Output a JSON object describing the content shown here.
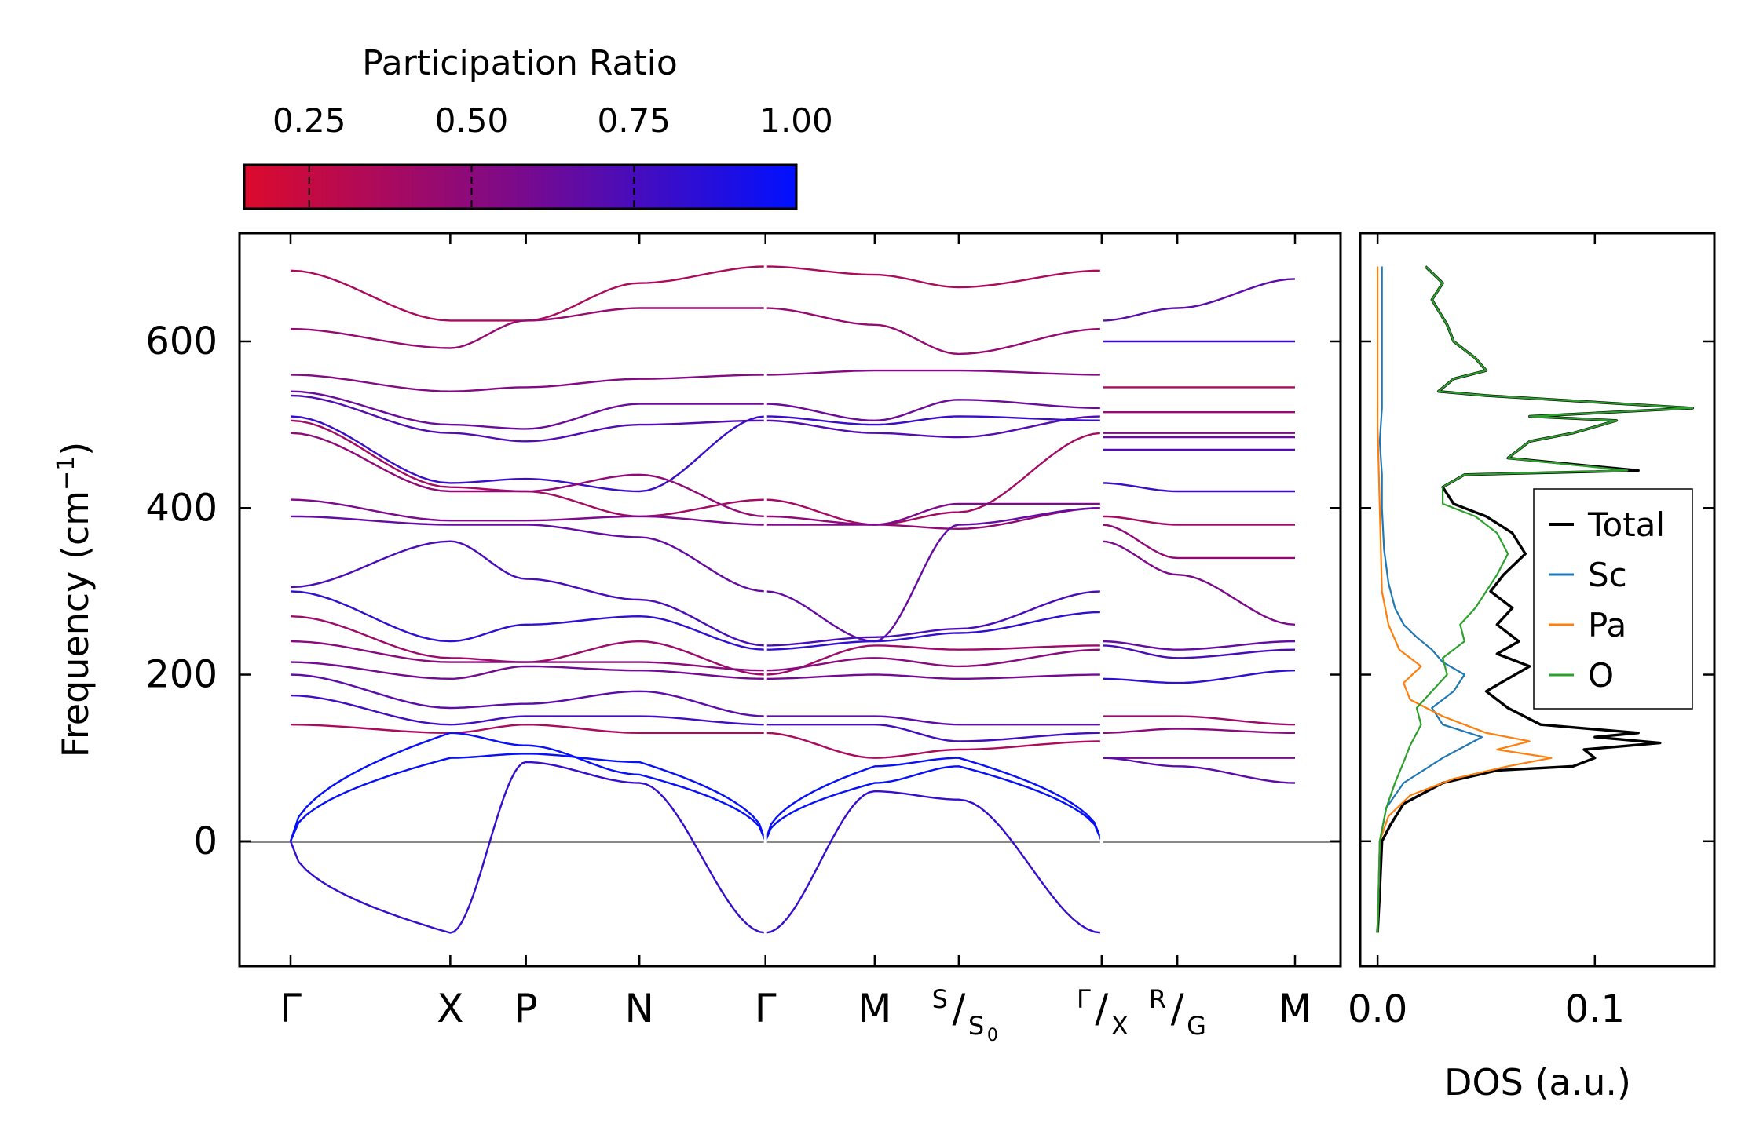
{
  "chart_data": [
    {
      "type": "line",
      "name": "phonon-band-structure",
      "ylabel_main": "Frequency (cm",
      "ylabel_sup": "−1",
      "ylabel_close": ")",
      "ylim": [
        -150,
        730
      ],
      "yticks": [
        0,
        200,
        400,
        600
      ],
      "segments": [
        {
          "x0": 0,
          "x1": 1.9
        },
        {
          "x0": 1.9,
          "x1": 2.8
        },
        {
          "x0": 2.8,
          "x1": 4.15
        },
        {
          "x0": 4.15,
          "x1": 5.65
        },
        {
          "x0": 5.65,
          "x1": 6.95
        },
        {
          "x0": 6.95,
          "x1": 7.95
        },
        {
          "x0": 7.95,
          "x1": 9.65
        },
        {
          "x0": 9.65,
          "x1": 10.55
        },
        {
          "x0": 10.55,
          "x1": 11.95
        }
      ],
      "discontinuities": [
        5.65,
        9.65
      ],
      "xmax": 11.95,
      "xticks": [
        {
          "x": 0,
          "label": "Γ"
        },
        {
          "x": 1.9,
          "label": "X"
        },
        {
          "x": 2.8,
          "label": "P"
        },
        {
          "x": 4.15,
          "label": "N"
        },
        {
          "x": 5.65,
          "label": "Γ"
        },
        {
          "x": 6.95,
          "label": "M"
        },
        {
          "x": 7.95,
          "sup": "S",
          "sub": "S",
          "subsub": "0"
        },
        {
          "x": 9.65,
          "sup": "Γ",
          "sub": "X"
        },
        {
          "x": 10.55,
          "sup": "R",
          "sub": "G"
        },
        {
          "x": 11.95,
          "label": "M"
        }
      ],
      "bands": [
        [
          685,
          625,
          625,
          670,
          690,
          680,
          665,
          685,
          625,
          640,
          675
        ],
        [
          615,
          592,
          625,
          640,
          640,
          620,
          585,
          615,
          600,
          600,
          600
        ],
        [
          560,
          540,
          545,
          555,
          560,
          565,
          565,
          560,
          545,
          545,
          545
        ],
        [
          540,
          500,
          495,
          525,
          525,
          505,
          530,
          520,
          515,
          515,
          515
        ],
        [
          535,
          490,
          480,
          500,
          505,
          490,
          485,
          510,
          490,
          490,
          490
        ],
        [
          510,
          430,
          435,
          420,
          510,
          500,
          510,
          505,
          485,
          485,
          485
        ],
        [
          505,
          425,
          420,
          390,
          410,
          380,
          395,
          490,
          470,
          470,
          470
        ],
        [
          490,
          420,
          420,
          440,
          390,
          380,
          375,
          400,
          430,
          420,
          420
        ],
        [
          410,
          385,
          385,
          390,
          380,
          380,
          405,
          405,
          390,
          380,
          380
        ],
        [
          390,
          380,
          380,
          365,
          300,
          240,
          380,
          400,
          380,
          340,
          340
        ],
        [
          305,
          360,
          315,
          290,
          235,
          245,
          255,
          300,
          360,
          320,
          260
        ],
        [
          300,
          240,
          260,
          270,
          230,
          240,
          250,
          275,
          240,
          230,
          240
        ],
        [
          270,
          220,
          215,
          240,
          200,
          235,
          230,
          235,
          235,
          220,
          230
        ],
        [
          240,
          215,
          215,
          215,
          205,
          220,
          210,
          230,
          195,
          190,
          205
        ],
        [
          215,
          195,
          210,
          205,
          195,
          200,
          195,
          200,
          150,
          150,
          140
        ],
        [
          200,
          160,
          165,
          180,
          150,
          150,
          140,
          140,
          130,
          135,
          130
        ],
        [
          175,
          140,
          150,
          150,
          140,
          140,
          120,
          130,
          100,
          100,
          100
        ],
        [
          140,
          130,
          140,
          130,
          130,
          100,
          110,
          120,
          100,
          90,
          70
        ]
      ],
      "acoustic": [
        [
          0,
          130,
          115,
          80,
          0,
          70,
          90,
          0
        ],
        [
          0,
          100,
          105,
          95,
          0,
          90,
          100,
          0
        ],
        [
          0,
          -110,
          95,
          70,
          -110,
          60,
          50,
          -110
        ]
      ],
      "colorbar": {
        "title": "Participation Ratio",
        "range": [
          0.15,
          1.0
        ],
        "ticks": [
          0.25,
          0.5,
          0.75,
          1.0
        ],
        "tick_labels": [
          "0.25",
          "0.50",
          "0.75",
          "1.00"
        ],
        "color_low": "#dc0a2d",
        "color_mid": "#7a0a8c",
        "color_high": "#0010ff"
      }
    },
    {
      "type": "line",
      "name": "phonon-dos",
      "xlabel": "DOS (a.u.)",
      "xlim": [
        -0.008,
        0.155
      ],
      "xticks": [
        0.0,
        0.1
      ],
      "xtick_labels": [
        "0.0",
        "0.1"
      ],
      "legend_position": "center-right",
      "series": [
        {
          "name": "Total",
          "color": "#000000",
          "points": [
            [
              0.0,
              -110
            ],
            [
              0.001,
              -60
            ],
            [
              0.002,
              0
            ],
            [
              0.006,
              20
            ],
            [
              0.012,
              45
            ],
            [
              0.03,
              70
            ],
            [
              0.055,
              85
            ],
            [
              0.09,
              90
            ],
            [
              0.1,
              100
            ],
            [
              0.095,
              110
            ],
            [
              0.13,
              118
            ],
            [
              0.1,
              125
            ],
            [
              0.12,
              130
            ],
            [
              0.075,
              140
            ],
            [
              0.06,
              160
            ],
            [
              0.05,
              180
            ],
            [
              0.06,
              195
            ],
            [
              0.07,
              210
            ],
            [
              0.055,
              225
            ],
            [
              0.065,
              240
            ],
            [
              0.055,
              260
            ],
            [
              0.062,
              280
            ],
            [
              0.052,
              300
            ],
            [
              0.058,
              320
            ],
            [
              0.068,
              345
            ],
            [
              0.062,
              370
            ],
            [
              0.05,
              390
            ],
            [
              0.035,
              405
            ],
            [
              0.03,
              425
            ],
            [
              0.04,
              440
            ],
            [
              0.12,
              445
            ],
            [
              0.06,
              460
            ],
            [
              0.07,
              480
            ],
            [
              0.09,
              490
            ],
            [
              0.11,
              505
            ],
            [
              0.07,
              510
            ],
            [
              0.145,
              520
            ],
            [
              0.05,
              535
            ],
            [
              0.028,
              540
            ],
            [
              0.035,
              555
            ],
            [
              0.05,
              565
            ],
            [
              0.045,
              580
            ],
            [
              0.035,
              600
            ],
            [
              0.032,
              620
            ],
            [
              0.025,
              650
            ],
            [
              0.03,
              670
            ],
            [
              0.022,
              690
            ]
          ]
        },
        {
          "name": "Sc",
          "color": "#1f77b4",
          "points": [
            [
              0.0,
              -110
            ],
            [
              0.001,
              0
            ],
            [
              0.004,
              40
            ],
            [
              0.012,
              70
            ],
            [
              0.03,
              100
            ],
            [
              0.048,
              125
            ],
            [
              0.03,
              140
            ],
            [
              0.025,
              160
            ],
            [
              0.035,
              180
            ],
            [
              0.04,
              200
            ],
            [
              0.03,
              215
            ],
            [
              0.025,
              230
            ],
            [
              0.018,
              245
            ],
            [
              0.012,
              260
            ],
            [
              0.008,
              280
            ],
            [
              0.005,
              310
            ],
            [
              0.003,
              350
            ],
            [
              0.002,
              400
            ],
            [
              0.002,
              440
            ],
            [
              0.001,
              480
            ],
            [
              0.002,
              520
            ],
            [
              0.002,
              560
            ],
            [
              0.002,
              620
            ],
            [
              0.002,
              690
            ]
          ]
        },
        {
          "name": "Pa",
          "color": "#ff7f0e",
          "points": [
            [
              0.0,
              -110
            ],
            [
              0.001,
              0
            ],
            [
              0.005,
              30
            ],
            [
              0.015,
              55
            ],
            [
              0.035,
              75
            ],
            [
              0.06,
              90
            ],
            [
              0.08,
              100
            ],
            [
              0.055,
              110
            ],
            [
              0.07,
              120
            ],
            [
              0.05,
              130
            ],
            [
              0.03,
              150
            ],
            [
              0.015,
              170
            ],
            [
              0.012,
              190
            ],
            [
              0.02,
              210
            ],
            [
              0.01,
              230
            ],
            [
              0.005,
              260
            ],
            [
              0.002,
              300
            ],
            [
              0.001,
              400
            ],
            [
              0.0,
              500
            ],
            [
              0.0,
              600
            ],
            [
              0.0,
              690
            ]
          ]
        },
        {
          "name": "O",
          "color": "#2ca02c",
          "points": [
            [
              0.0,
              -110
            ],
            [
              0.001,
              0
            ],
            [
              0.004,
              40
            ],
            [
              0.008,
              70
            ],
            [
              0.012,
              95
            ],
            [
              0.015,
              115
            ],
            [
              0.02,
              140
            ],
            [
              0.018,
              160
            ],
            [
              0.025,
              180
            ],
            [
              0.032,
              200
            ],
            [
              0.03,
              220
            ],
            [
              0.04,
              240
            ],
            [
              0.038,
              260
            ],
            [
              0.045,
              280
            ],
            [
              0.05,
              300
            ],
            [
              0.055,
              320
            ],
            [
              0.06,
              345
            ],
            [
              0.055,
              370
            ],
            [
              0.045,
              390
            ],
            [
              0.03,
              405
            ],
            [
              0.03,
              425
            ],
            [
              0.04,
              440
            ],
            [
              0.115,
              445
            ],
            [
              0.06,
              460
            ],
            [
              0.07,
              480
            ],
            [
              0.09,
              490
            ],
            [
              0.11,
              505
            ],
            [
              0.07,
              510
            ],
            [
              0.145,
              520
            ],
            [
              0.05,
              535
            ],
            [
              0.028,
              540
            ],
            [
              0.035,
              555
            ],
            [
              0.05,
              565
            ],
            [
              0.045,
              580
            ],
            [
              0.035,
              600
            ],
            [
              0.032,
              620
            ],
            [
              0.025,
              650
            ],
            [
              0.03,
              670
            ],
            [
              0.022,
              690
            ]
          ]
        }
      ]
    }
  ]
}
